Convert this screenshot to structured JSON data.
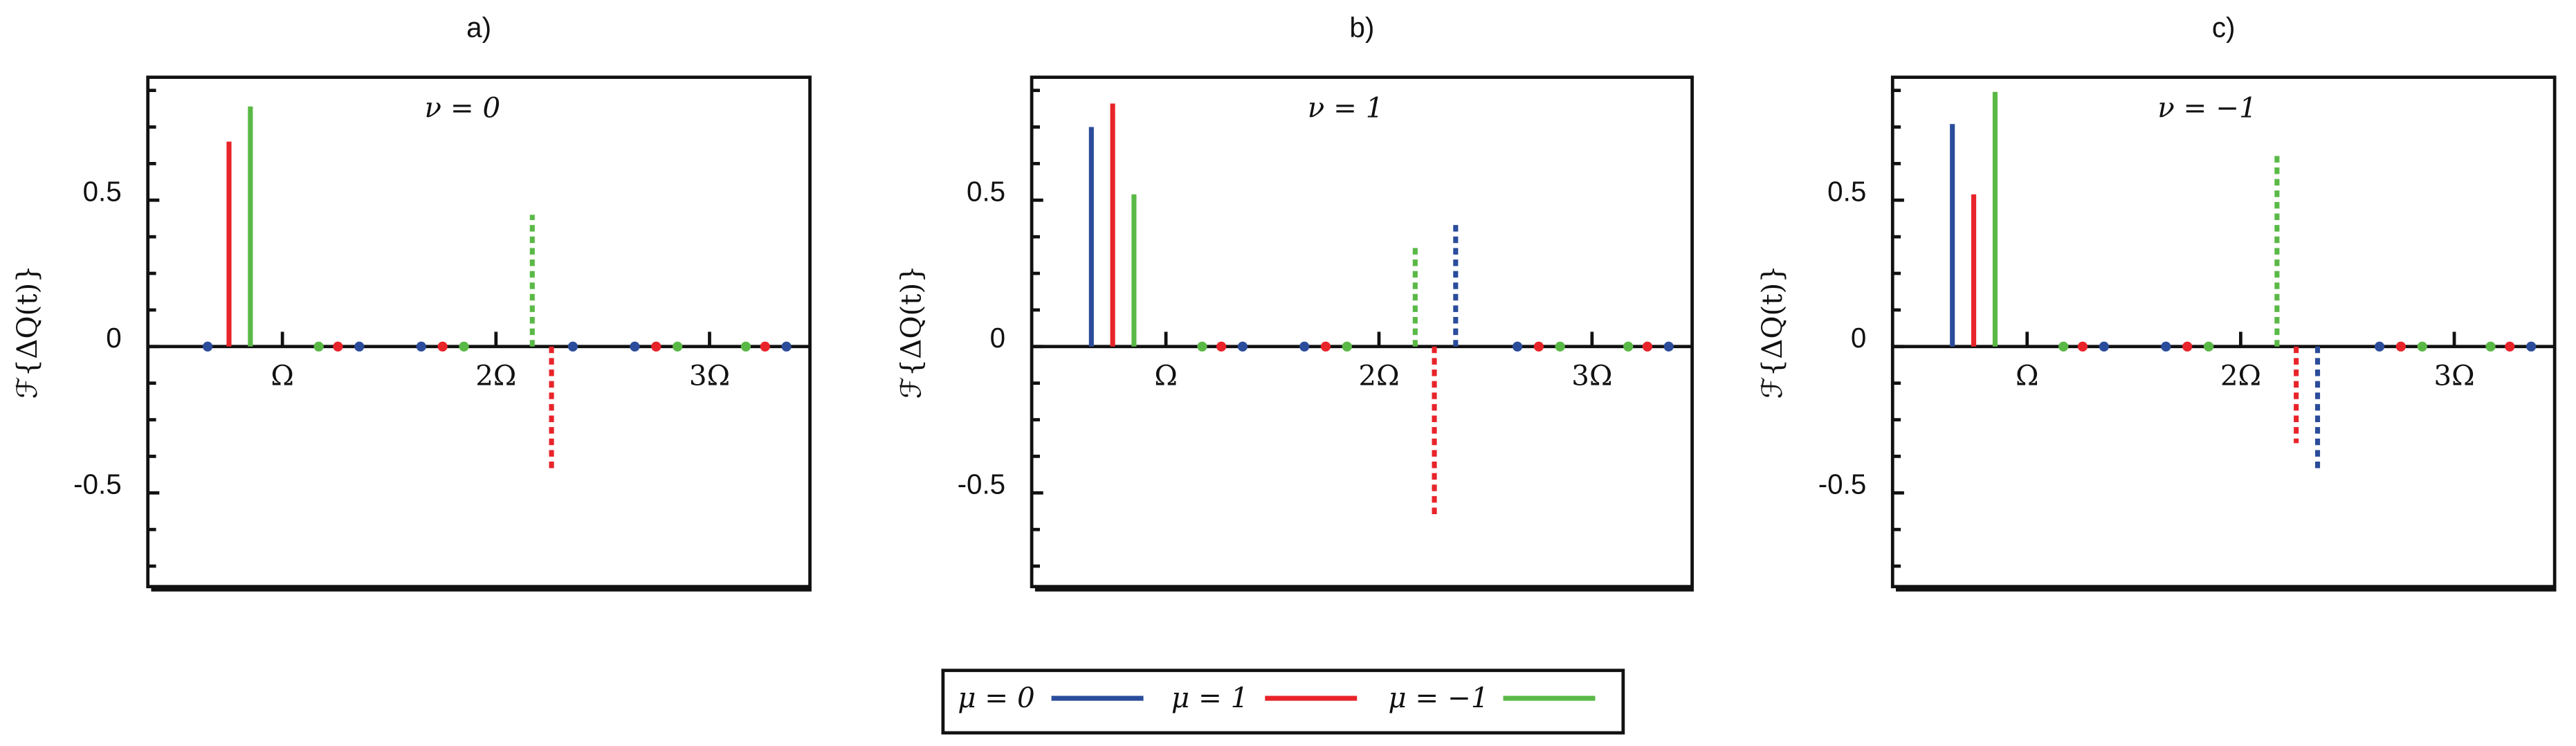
{
  "chart_data": [
    {
      "type": "bar",
      "title": "a)",
      "annotation": "ν = 0",
      "ylabel": "ℱ{ΔQ(t)}",
      "xlim": [
        0.37,
        3.47
      ],
      "xticks": [
        {
          "value": 1,
          "label": "Ω"
        },
        {
          "value": 2,
          "label": "2Ω"
        },
        {
          "value": 3,
          "label": "3Ω"
        }
      ],
      "ylim": [
        -0.82,
        0.92
      ],
      "yticks": [
        -0.5,
        0,
        0.5
      ],
      "yminorticks": [
        -0.75,
        -0.625,
        -0.375,
        -0.25,
        -0.125,
        0.125,
        0.25,
        0.375,
        0.625,
        0.75,
        0.875
      ],
      "series": [
        {
          "name": "μ = 0",
          "color": "#2b4c9b",
          "values": [
            0,
            0,
            0
          ],
          "dashed_values": [
            0,
            0,
            0
          ]
        },
        {
          "name": "μ = 1",
          "color": "#e8232a",
          "values": [
            0.7,
            0,
            0
          ],
          "dashed_values": [
            0,
            -0.42,
            0
          ]
        },
        {
          "name": "μ = −1",
          "color": "#5ab946",
          "values": [
            0.82,
            0,
            0
          ],
          "dashed_values": [
            0,
            0.45,
            0
          ]
        }
      ]
    },
    {
      "type": "bar",
      "title": "b)",
      "annotation": "ν = 1",
      "ylabel": "ℱ{ΔQ(t)}",
      "xlim": [
        0.37,
        3.47
      ],
      "xticks": [
        {
          "value": 1,
          "label": "Ω"
        },
        {
          "value": 2,
          "label": "2Ω"
        },
        {
          "value": 3,
          "label": "3Ω"
        }
      ],
      "ylim": [
        -0.82,
        0.92
      ],
      "yticks": [
        -0.5,
        0,
        0.5
      ],
      "yminorticks": [
        -0.75,
        -0.625,
        -0.375,
        -0.25,
        -0.125,
        0.125,
        0.25,
        0.375,
        0.625,
        0.75,
        0.875
      ],
      "series": [
        {
          "name": "μ = 0",
          "color": "#2b4c9b",
          "values": [
            0.75,
            0,
            0
          ],
          "dashed_values": [
            0,
            0.43,
            0
          ]
        },
        {
          "name": "μ = 1",
          "color": "#e8232a",
          "values": [
            0.83,
            0,
            0
          ],
          "dashed_values": [
            0,
            -0.58,
            0
          ]
        },
        {
          "name": "μ = −1",
          "color": "#5ab946",
          "values": [
            0.52,
            0,
            0
          ],
          "dashed_values": [
            0,
            0.35,
            0
          ]
        }
      ]
    },
    {
      "type": "bar",
      "title": "c)",
      "annotation": "ν = −1",
      "ylabel": "ℱ{ΔQ(t)}",
      "xlim": [
        0.37,
        3.47
      ],
      "xticks": [
        {
          "value": 1,
          "label": "Ω"
        },
        {
          "value": 2,
          "label": "2Ω"
        },
        {
          "value": 3,
          "label": "3Ω"
        }
      ],
      "ylim": [
        -0.82,
        0.92
      ],
      "yticks": [
        -0.5,
        0,
        0.5
      ],
      "yminorticks": [
        -0.75,
        -0.625,
        -0.375,
        -0.25,
        -0.125,
        0.125,
        0.25,
        0.375,
        0.625,
        0.75,
        0.875
      ],
      "series": [
        {
          "name": "μ = 0",
          "color": "#2b4c9b",
          "values": [
            0.76,
            0,
            0
          ],
          "dashed_values": [
            0,
            -0.42,
            0
          ]
        },
        {
          "name": "μ = 1",
          "color": "#e8232a",
          "values": [
            0.52,
            0,
            0
          ],
          "dashed_values": [
            0,
            -0.33,
            0
          ]
        },
        {
          "name": "μ = −1",
          "color": "#5ab946",
          "values": [
            0.87,
            0,
            0
          ],
          "dashed_values": [
            0,
            0.66,
            0
          ]
        }
      ]
    }
  ]
}
